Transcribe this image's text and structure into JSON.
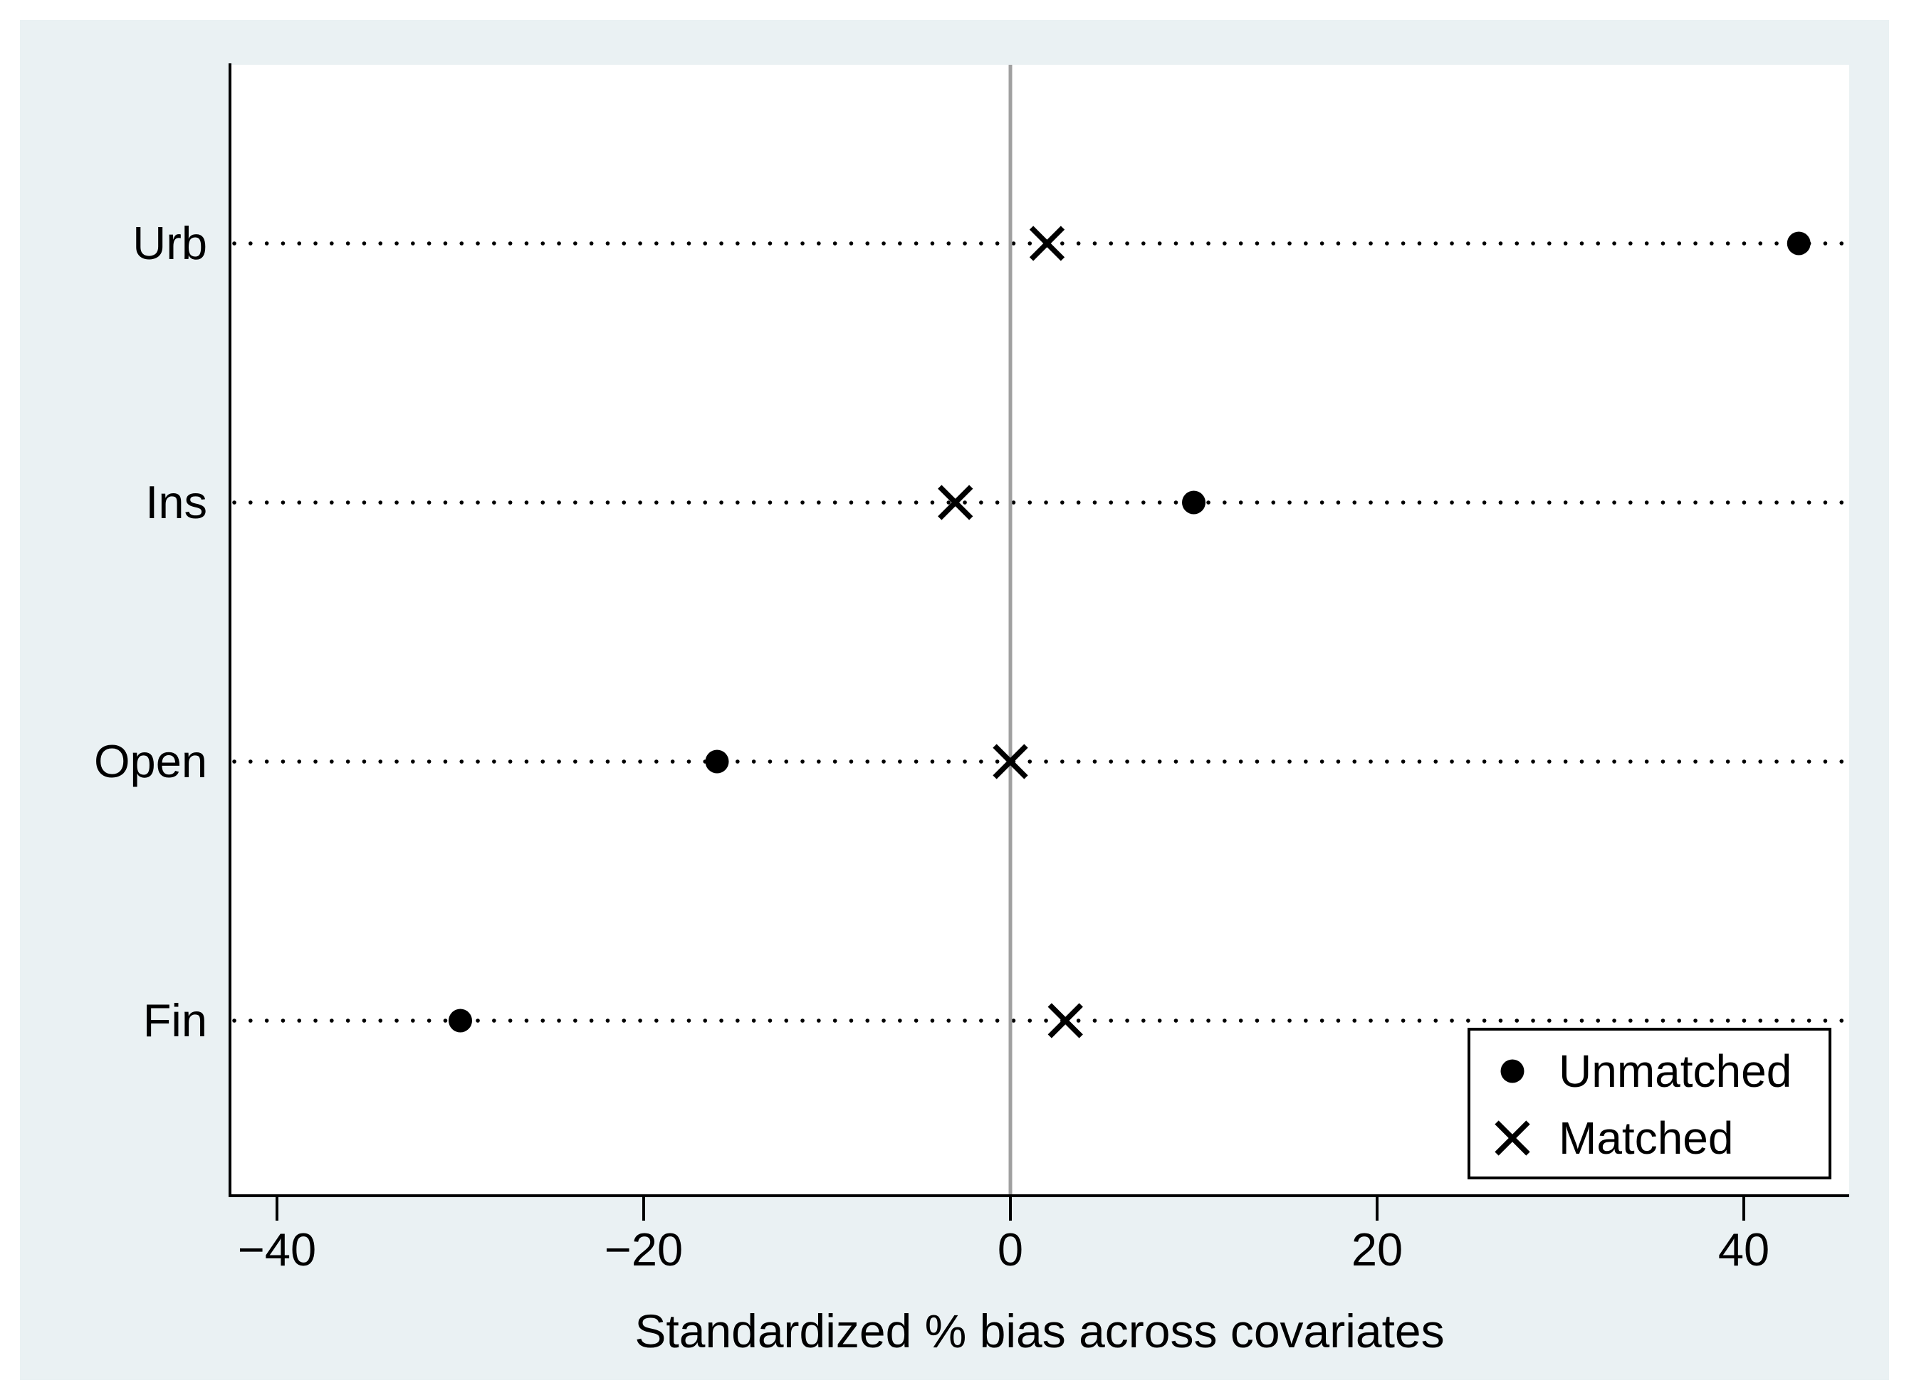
{
  "figure": {
    "canvas_color": "#eaf1f3",
    "plot_bg_color": "#ffffff",
    "axis_color": "#000000"
  },
  "chart_data": {
    "type": "scatter",
    "xlabel": "Standardized % bias across covariates",
    "categories": [
      "Urb",
      "Ins",
      "Open",
      "Fin"
    ],
    "series": [
      {
        "name": "Unmatched",
        "marker": "filled-circle",
        "values": [
          43,
          10,
          -16,
          -30
        ]
      },
      {
        "name": "Matched",
        "marker": "x-cross",
        "values": [
          2,
          -3,
          0,
          3
        ]
      }
    ],
    "x_ticks": [
      {
        "value": -40,
        "label": "−40"
      },
      {
        "value": -20,
        "label": "−20"
      },
      {
        "value": 0,
        "label": "0"
      },
      {
        "value": 20,
        "label": "20"
      },
      {
        "value": 40,
        "label": "40"
      }
    ],
    "xlim": [
      -42.6,
      45.8
    ],
    "reference_line": {
      "x": 0,
      "color": "#a0a0a0"
    },
    "gridlines": {
      "orientation": "horizontal",
      "style": "dotted",
      "color": "#000000"
    },
    "legend_position": "bottom-right",
    "marker_color": "#000000"
  }
}
